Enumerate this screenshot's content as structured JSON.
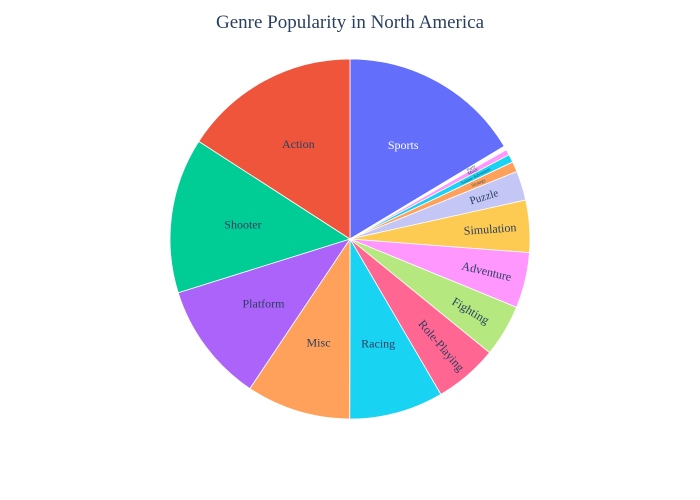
{
  "chart_data": {
    "type": "pie",
    "title": "Genre Popularity in North America",
    "direction": "clockwise",
    "start": "12 o'clock",
    "categories": [
      "Sports",
      "Party",
      "Music",
      "Action-Adventure",
      "Strategy",
      "Puzzle",
      "Simulation",
      "Adventure",
      "Fighting",
      "Role-Playing",
      "Racing",
      "Misc",
      "Platform",
      "Shooter",
      "Action"
    ],
    "values": [
      16.1,
      0.35,
      0.5,
      0.7,
      0.9,
      2.6,
      4.6,
      4.9,
      4.6,
      5.6,
      8.3,
      9.2,
      10.6,
      13.7,
      15.6
    ],
    "colors": [
      "#636efa",
      "#ffffff",
      "#ff97ff",
      "#19d3f3",
      "#ffa15a",
      "#c4c6f6",
      "#fecb52",
      "#ff97ff",
      "#b6e880",
      "#ff6692",
      "#19d3f3",
      "#ffa15a",
      "#ab63fa",
      "#00cc96",
      "#ef553b"
    ],
    "label_colors": [
      "#ffffff",
      "#2a3f5f",
      "#2a3f5f",
      "#2a3f5f",
      "#2a3f5f",
      "#2a3f5f",
      "#2a3f5f",
      "#2a3f5f",
      "#2a3f5f",
      "#2a3f5f",
      "#2a3f5f",
      "#2a3f5f",
      "#2a3f5f",
      "#2a3f5f",
      "#2a3f5f"
    ],
    "label_rotation": [
      "horizontal",
      "radial",
      "radial",
      "radial",
      "radial",
      "radial",
      "radial",
      "radial",
      "radial",
      "radial",
      "horizontal",
      "horizontal",
      "horizontal",
      "horizontal",
      "horizontal"
    ]
  }
}
